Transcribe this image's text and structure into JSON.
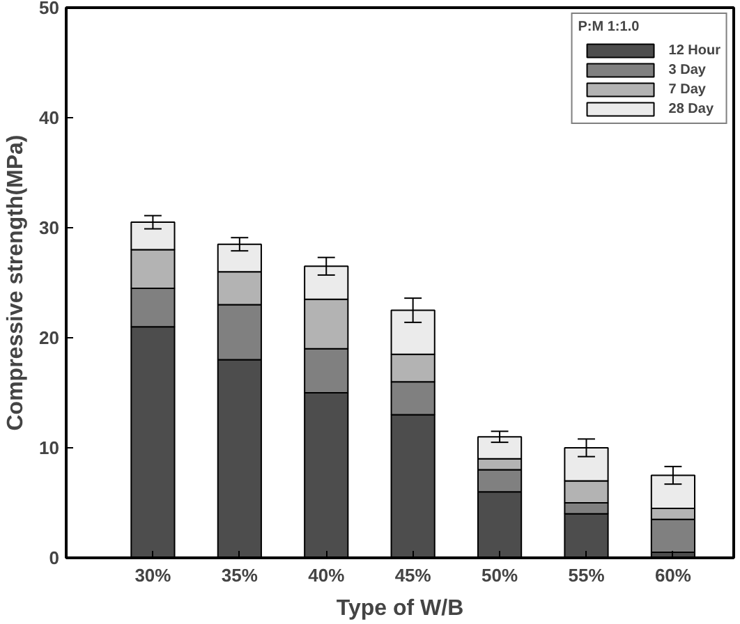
{
  "chart_data": {
    "type": "bar",
    "stacked": true,
    "xlabel": "Type of W/B",
    "ylabel": "Compressive strength(MPa)",
    "legend_title": "P:M 1:1.0",
    "legend": "top right",
    "grid": false,
    "categories": [
      "30%",
      "35%",
      "40%",
      "45%",
      "50%",
      "55%",
      "60%"
    ],
    "ylim": [
      0,
      50
    ],
    "yticks": [
      0,
      10,
      20,
      30,
      40,
      50
    ],
    "series": [
      {
        "name": "12 Hour",
        "color": "#4d4d4d",
        "values": [
          21,
          18,
          15,
          13,
          6,
          4,
          0.5
        ]
      },
      {
        "name": "3 Day",
        "color": "#808080",
        "values": [
          3.5,
          5,
          4,
          3,
          2,
          1,
          3
        ]
      },
      {
        "name": "7 Day",
        "color": "#b3b3b3",
        "values": [
          3.5,
          3,
          4.5,
          2.5,
          1,
          2,
          1
        ]
      },
      {
        "name": "28 Day",
        "color": "#ebebeb",
        "values": [
          2.5,
          2.5,
          3,
          4,
          2,
          3,
          3
        ],
        "errors": [
          0.6,
          0.6,
          0.8,
          1.1,
          0.5,
          0.8,
          0.8
        ]
      }
    ]
  }
}
